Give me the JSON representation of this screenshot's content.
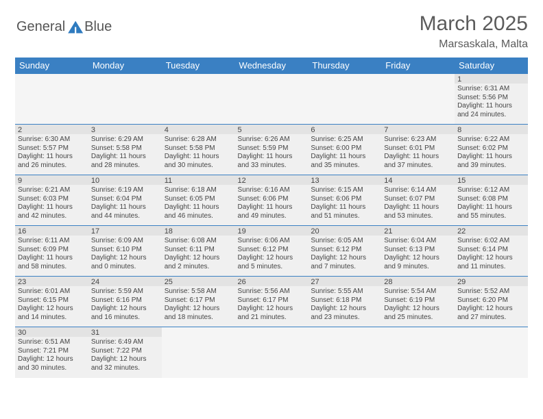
{
  "logo": {
    "text1": "General",
    "text2": "Blue"
  },
  "header": {
    "title": "March 2025",
    "location": "Marsaskala, Malta"
  },
  "colors": {
    "accent": "#3a80c3",
    "text": "#444444",
    "bg_cell": "#f0f0f0",
    "bg_daynum": "#e3e3e3"
  },
  "calendar": {
    "daynames": [
      "Sunday",
      "Monday",
      "Tuesday",
      "Wednesday",
      "Thursday",
      "Friday",
      "Saturday"
    ],
    "weeks": [
      [
        null,
        null,
        null,
        null,
        null,
        null,
        {
          "n": "1",
          "sr": "Sunrise: 6:31 AM",
          "ss": "Sunset: 5:56 PM",
          "dl": "Daylight: 11 hours and 24 minutes."
        }
      ],
      [
        {
          "n": "2",
          "sr": "Sunrise: 6:30 AM",
          "ss": "Sunset: 5:57 PM",
          "dl": "Daylight: 11 hours and 26 minutes."
        },
        {
          "n": "3",
          "sr": "Sunrise: 6:29 AM",
          "ss": "Sunset: 5:58 PM",
          "dl": "Daylight: 11 hours and 28 minutes."
        },
        {
          "n": "4",
          "sr": "Sunrise: 6:28 AM",
          "ss": "Sunset: 5:58 PM",
          "dl": "Daylight: 11 hours and 30 minutes."
        },
        {
          "n": "5",
          "sr": "Sunrise: 6:26 AM",
          "ss": "Sunset: 5:59 PM",
          "dl": "Daylight: 11 hours and 33 minutes."
        },
        {
          "n": "6",
          "sr": "Sunrise: 6:25 AM",
          "ss": "Sunset: 6:00 PM",
          "dl": "Daylight: 11 hours and 35 minutes."
        },
        {
          "n": "7",
          "sr": "Sunrise: 6:23 AM",
          "ss": "Sunset: 6:01 PM",
          "dl": "Daylight: 11 hours and 37 minutes."
        },
        {
          "n": "8",
          "sr": "Sunrise: 6:22 AM",
          "ss": "Sunset: 6:02 PM",
          "dl": "Daylight: 11 hours and 39 minutes."
        }
      ],
      [
        {
          "n": "9",
          "sr": "Sunrise: 6:21 AM",
          "ss": "Sunset: 6:03 PM",
          "dl": "Daylight: 11 hours and 42 minutes."
        },
        {
          "n": "10",
          "sr": "Sunrise: 6:19 AM",
          "ss": "Sunset: 6:04 PM",
          "dl": "Daylight: 11 hours and 44 minutes."
        },
        {
          "n": "11",
          "sr": "Sunrise: 6:18 AM",
          "ss": "Sunset: 6:05 PM",
          "dl": "Daylight: 11 hours and 46 minutes."
        },
        {
          "n": "12",
          "sr": "Sunrise: 6:16 AM",
          "ss": "Sunset: 6:06 PM",
          "dl": "Daylight: 11 hours and 49 minutes."
        },
        {
          "n": "13",
          "sr": "Sunrise: 6:15 AM",
          "ss": "Sunset: 6:06 PM",
          "dl": "Daylight: 11 hours and 51 minutes."
        },
        {
          "n": "14",
          "sr": "Sunrise: 6:14 AM",
          "ss": "Sunset: 6:07 PM",
          "dl": "Daylight: 11 hours and 53 minutes."
        },
        {
          "n": "15",
          "sr": "Sunrise: 6:12 AM",
          "ss": "Sunset: 6:08 PM",
          "dl": "Daylight: 11 hours and 55 minutes."
        }
      ],
      [
        {
          "n": "16",
          "sr": "Sunrise: 6:11 AM",
          "ss": "Sunset: 6:09 PM",
          "dl": "Daylight: 11 hours and 58 minutes."
        },
        {
          "n": "17",
          "sr": "Sunrise: 6:09 AM",
          "ss": "Sunset: 6:10 PM",
          "dl": "Daylight: 12 hours and 0 minutes."
        },
        {
          "n": "18",
          "sr": "Sunrise: 6:08 AM",
          "ss": "Sunset: 6:11 PM",
          "dl": "Daylight: 12 hours and 2 minutes."
        },
        {
          "n": "19",
          "sr": "Sunrise: 6:06 AM",
          "ss": "Sunset: 6:12 PM",
          "dl": "Daylight: 12 hours and 5 minutes."
        },
        {
          "n": "20",
          "sr": "Sunrise: 6:05 AM",
          "ss": "Sunset: 6:12 PM",
          "dl": "Daylight: 12 hours and 7 minutes."
        },
        {
          "n": "21",
          "sr": "Sunrise: 6:04 AM",
          "ss": "Sunset: 6:13 PM",
          "dl": "Daylight: 12 hours and 9 minutes."
        },
        {
          "n": "22",
          "sr": "Sunrise: 6:02 AM",
          "ss": "Sunset: 6:14 PM",
          "dl": "Daylight: 12 hours and 11 minutes."
        }
      ],
      [
        {
          "n": "23",
          "sr": "Sunrise: 6:01 AM",
          "ss": "Sunset: 6:15 PM",
          "dl": "Daylight: 12 hours and 14 minutes."
        },
        {
          "n": "24",
          "sr": "Sunrise: 5:59 AM",
          "ss": "Sunset: 6:16 PM",
          "dl": "Daylight: 12 hours and 16 minutes."
        },
        {
          "n": "25",
          "sr": "Sunrise: 5:58 AM",
          "ss": "Sunset: 6:17 PM",
          "dl": "Daylight: 12 hours and 18 minutes."
        },
        {
          "n": "26",
          "sr": "Sunrise: 5:56 AM",
          "ss": "Sunset: 6:17 PM",
          "dl": "Daylight: 12 hours and 21 minutes."
        },
        {
          "n": "27",
          "sr": "Sunrise: 5:55 AM",
          "ss": "Sunset: 6:18 PM",
          "dl": "Daylight: 12 hours and 23 minutes."
        },
        {
          "n": "28",
          "sr": "Sunrise: 5:54 AM",
          "ss": "Sunset: 6:19 PM",
          "dl": "Daylight: 12 hours and 25 minutes."
        },
        {
          "n": "29",
          "sr": "Sunrise: 5:52 AM",
          "ss": "Sunset: 6:20 PM",
          "dl": "Daylight: 12 hours and 27 minutes."
        }
      ],
      [
        {
          "n": "30",
          "sr": "Sunrise: 6:51 AM",
          "ss": "Sunset: 7:21 PM",
          "dl": "Daylight: 12 hours and 30 minutes."
        },
        {
          "n": "31",
          "sr": "Sunrise: 6:49 AM",
          "ss": "Sunset: 7:22 PM",
          "dl": "Daylight: 12 hours and 32 minutes."
        },
        null,
        null,
        null,
        null,
        null
      ]
    ]
  }
}
